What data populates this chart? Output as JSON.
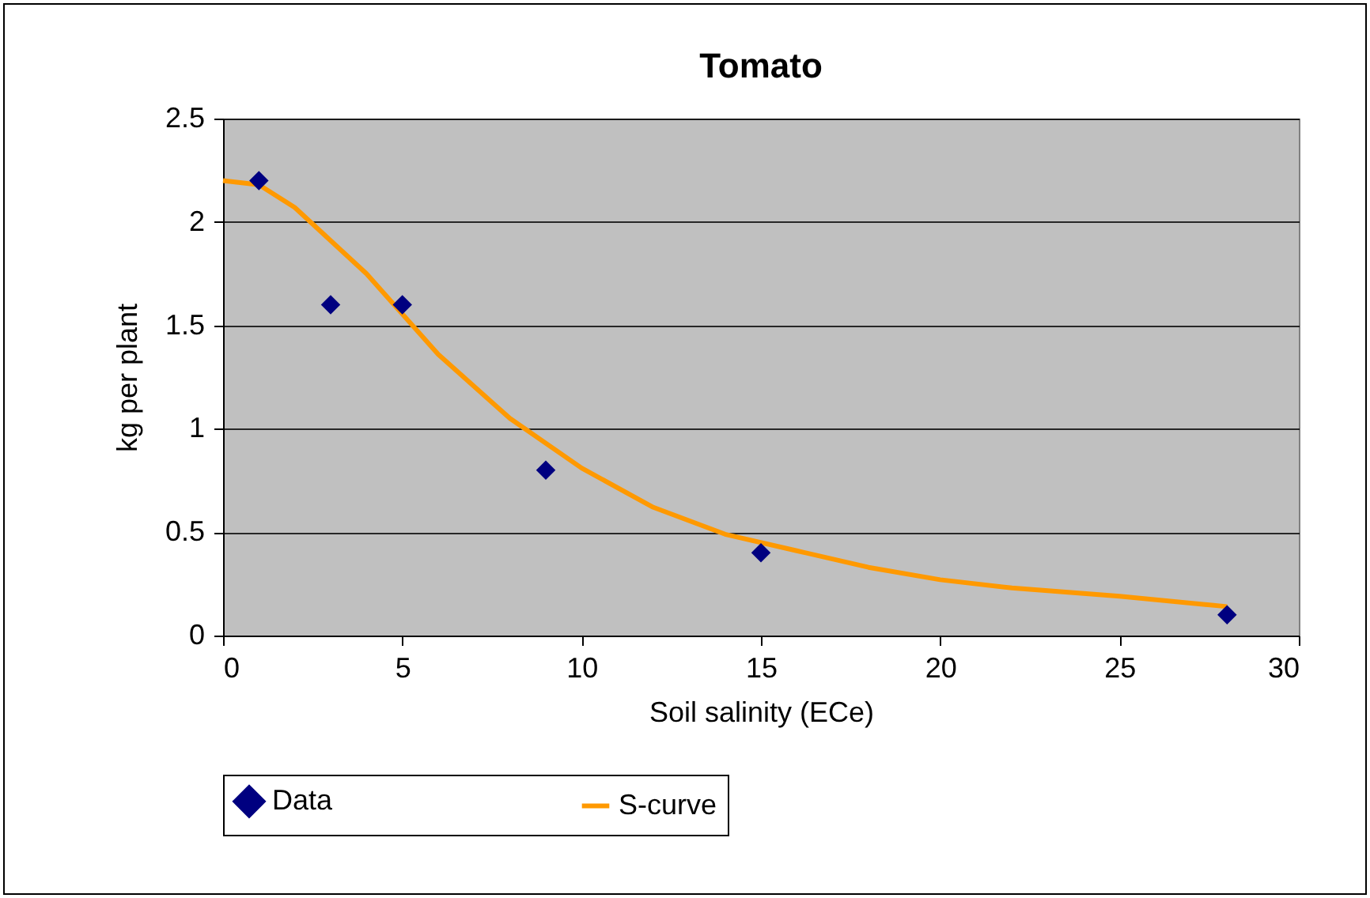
{
  "chart_data": {
    "type": "scatter",
    "title": "Tomato",
    "xlabel": "Soil salinity (ECe)",
    "ylabel": "kg per plant",
    "xlim": [
      0,
      30
    ],
    "xticks": [
      0,
      5,
      10,
      15,
      20,
      25,
      30
    ],
    "ylim": [
      0,
      2.5
    ],
    "yticks": [
      0,
      0.5,
      1,
      1.5,
      2,
      2.5
    ],
    "grid": "y",
    "legend": "bottom",
    "series": [
      {
        "name": "Data",
        "marker": "diamond",
        "color": "#000080",
        "x": [
          1,
          3,
          5,
          9,
          15,
          28
        ],
        "values": [
          2.2,
          1.6,
          1.6,
          0.8,
          0.4,
          0.1
        ]
      },
      {
        "name": "S-curve",
        "type": "line",
        "marker": "none",
        "color": "#ff9900",
        "line_style": "solid",
        "x": [
          0,
          1,
          2,
          4,
          6,
          8,
          10,
          12,
          14,
          16,
          18,
          20,
          22,
          25,
          28
        ],
        "values": [
          2.2,
          2.18,
          2.07,
          1.75,
          1.36,
          1.05,
          0.81,
          0.62,
          0.49,
          0.41,
          0.33,
          0.27,
          0.23,
          0.19,
          0.14
        ]
      }
    ]
  }
}
